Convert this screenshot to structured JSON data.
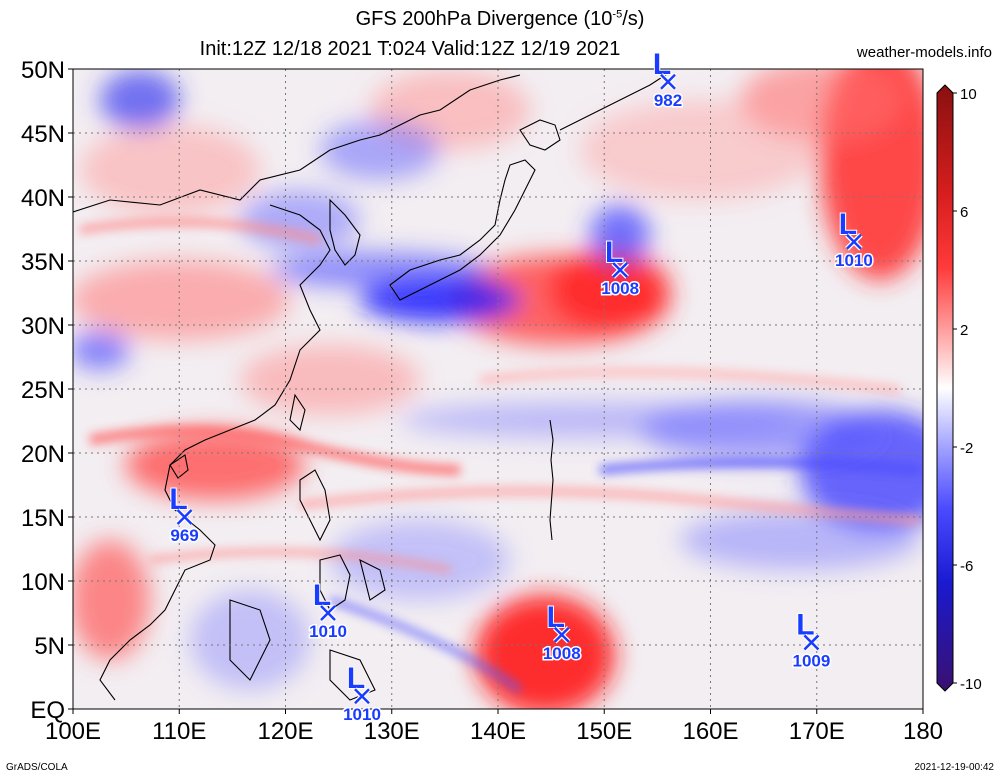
{
  "title": {
    "line1_prefix": "GFS 200hPa Divergence (10",
    "line1_exp": "-5",
    "line1_suffix": "/s)",
    "line2": "Init:12Z 12/18 2021 T:024 Valid:12Z 12/19 2021"
  },
  "site": "weather-models.info",
  "footer": {
    "left": "GrADS/COLA",
    "right": "2021-12-19-00:42"
  },
  "axes": {
    "lon_ticks": [
      "100E",
      "110E",
      "120E",
      "130E",
      "140E",
      "150E",
      "160E",
      "170E",
      "180"
    ],
    "lat_ticks": [
      "50N",
      "45N",
      "40N",
      "35N",
      "30N",
      "25N",
      "20N",
      "15N",
      "10N",
      "5N",
      "EQ"
    ],
    "lon_range": [
      100,
      180
    ],
    "lat_range": [
      0,
      50
    ]
  },
  "colorbar": {
    "labels": [
      "10",
      "6",
      "2",
      "-2",
      "-6",
      "-10"
    ],
    "colors": [
      "#9a1a1a",
      "#d61e1e",
      "#ff1a1a",
      "#ff6a6a",
      "#ffb0b0",
      "#ffffff",
      "#b0b0ff",
      "#6a6aff",
      "#1a1aff",
      "#1a10c0",
      "#3a1080"
    ]
  },
  "lows": [
    {
      "lon": 156.0,
      "lat": 49.0,
      "label": "L",
      "value": "982"
    },
    {
      "lon": 151.5,
      "lat": 34.3,
      "label": "L",
      "value": "1008"
    },
    {
      "lon": 173.5,
      "lat": 36.5,
      "label": "L",
      "value": "1010"
    },
    {
      "lon": 110.5,
      "lat": 15.0,
      "label": "L",
      "value": "969"
    },
    {
      "lon": 124.0,
      "lat": 7.5,
      "label": "L",
      "value": "1010"
    },
    {
      "lon": 146.0,
      "lat": 5.8,
      "label": "L",
      "value": "1008"
    },
    {
      "lon": 169.5,
      "lat": 5.2,
      "label": "L",
      "value": "1009"
    },
    {
      "lon": 127.2,
      "lat": 1.0,
      "label": "L",
      "value": "1010"
    }
  ],
  "colors": {
    "low_marker": "#1a3cff"
  }
}
